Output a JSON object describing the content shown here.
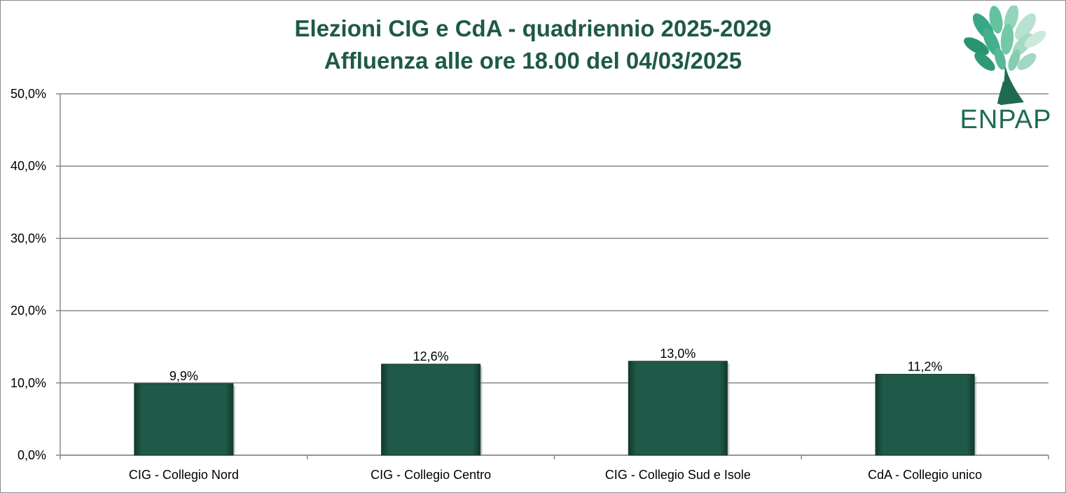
{
  "chart_data": {
    "type": "bar",
    "title": "Elezioni CIG e CdA - quadriennio 2025-2029",
    "subtitle": "Affluenza alle ore 18.00 del 04/03/2025",
    "categories": [
      "CIG - Collegio Nord",
      "CIG - Collegio Centro",
      "CIG - Collegio Sud e Isole",
      "CdA - Collegio unico"
    ],
    "values": [
      9.9,
      12.6,
      13.0,
      11.2
    ],
    "data_labels": [
      "9,9%",
      "12,6%",
      "13,0%",
      "11,2%"
    ],
    "y_ticks": [
      "0,0%",
      "10,0%",
      "20,0%",
      "30,0%",
      "40,0%",
      "50,0%"
    ],
    "y_tick_values": [
      0,
      10,
      20,
      30,
      40,
      50
    ],
    "ylim": [
      0,
      50
    ],
    "xlabel": "",
    "ylabel": "",
    "grid": true,
    "legend": "none",
    "colors": {
      "bar": "#1f5a49",
      "bar_dark": "#123a2e",
      "title": "#1e5a44",
      "grid": "#888888",
      "axis": "#888888"
    }
  },
  "logo": {
    "text": "ENPAP",
    "icon": "tree-logo-icon"
  }
}
